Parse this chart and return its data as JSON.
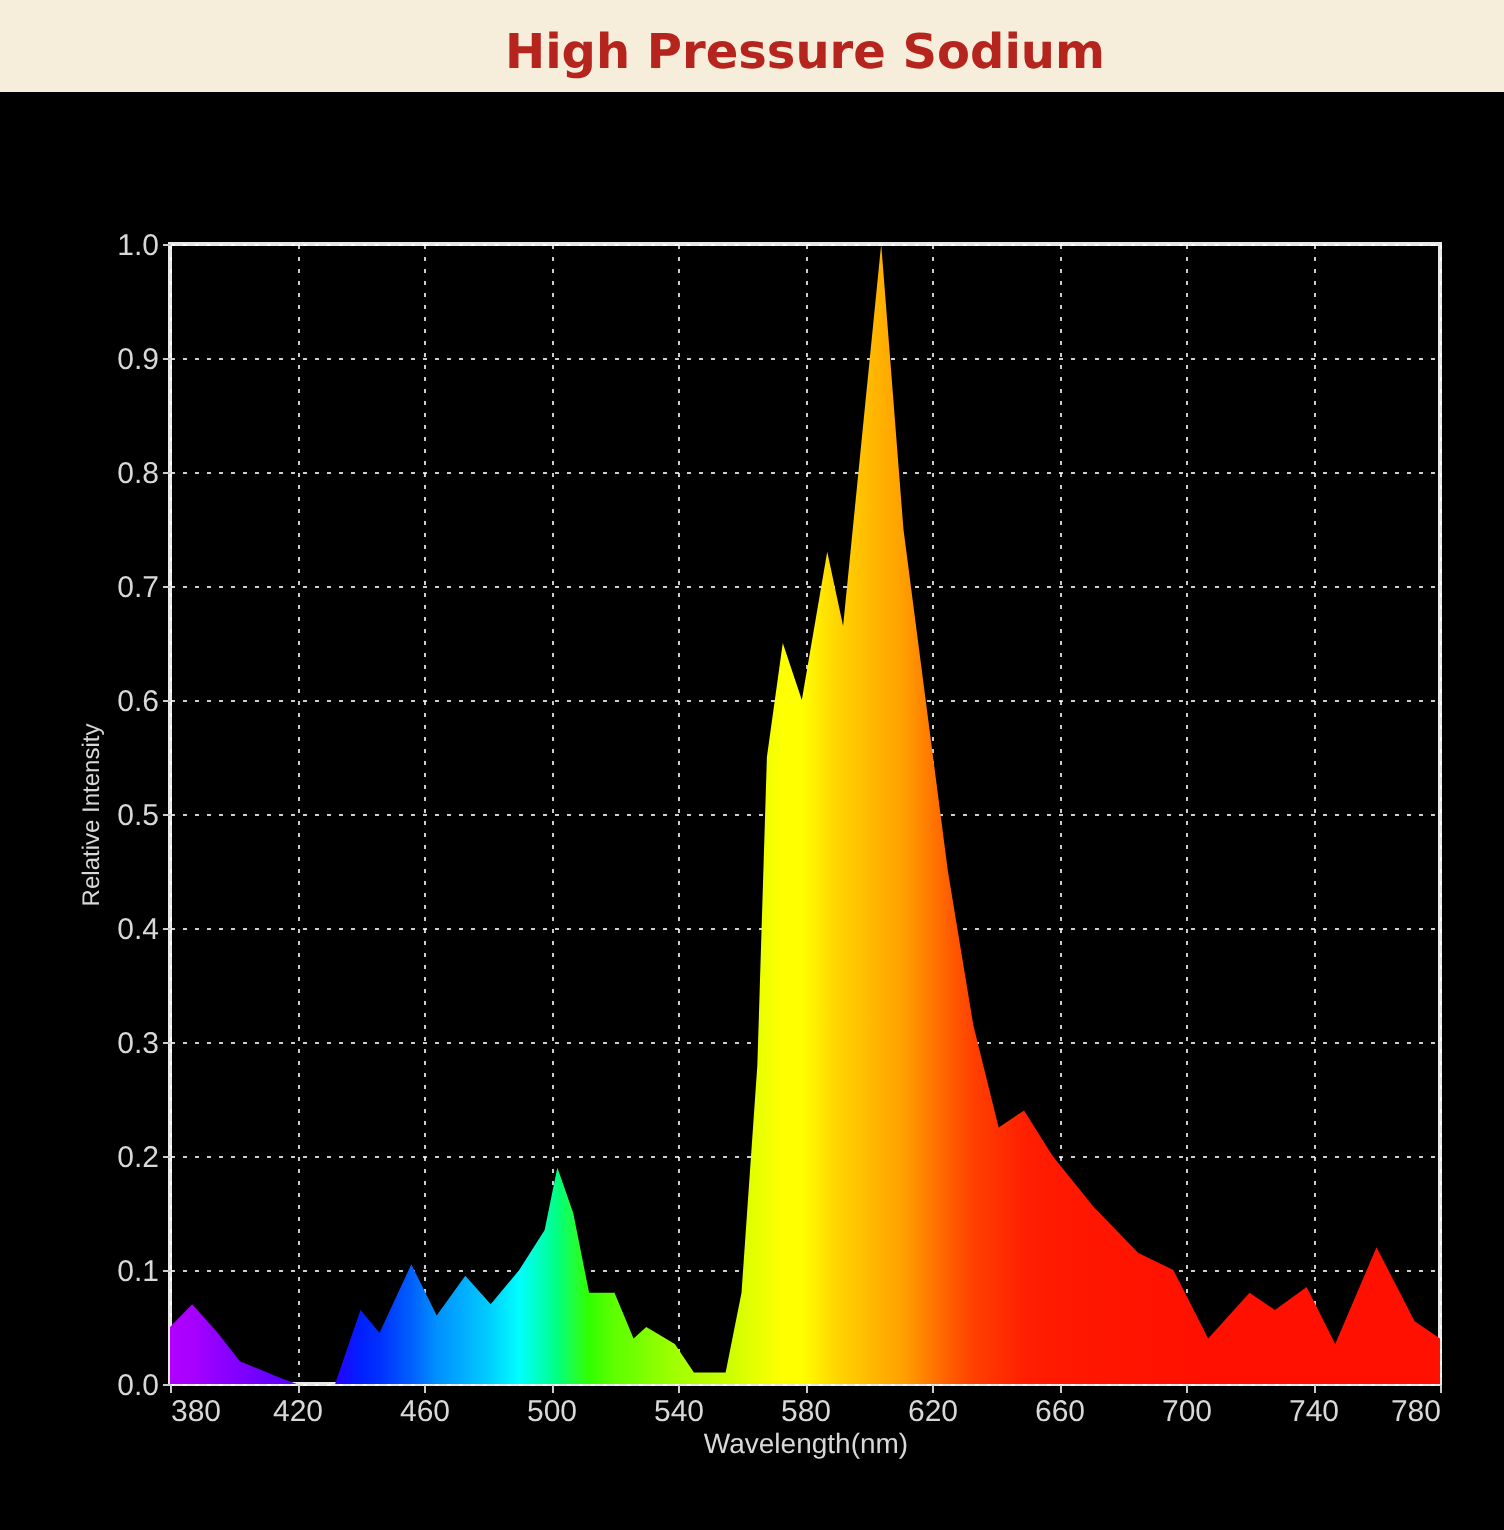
{
  "chart_data": {
    "type": "area",
    "title": "High Pressure Sodium",
    "xlabel": "Wavelength(nm)",
    "ylabel": "Relative Intensity",
    "x": [
      380,
      387,
      395,
      402,
      415,
      420,
      430,
      432,
      440,
      446,
      456,
      464,
      473,
      481,
      490,
      498,
      502,
      507,
      512,
      520,
      526,
      530,
      539,
      545,
      555,
      560,
      565,
      568,
      573,
      579,
      587,
      592,
      604,
      611,
      618,
      625,
      633,
      641,
      649,
      658,
      671,
      685,
      696,
      707,
      720,
      728,
      738,
      747,
      760,
      772,
      780
    ],
    "series": [
      {
        "values": [
          0.05,
          0.07,
          0.045,
          0.02,
          0.005,
          0.0,
          0.0,
          0.0,
          0.065,
          0.045,
          0.105,
          0.06,
          0.095,
          0.07,
          0.1,
          0.135,
          0.19,
          0.15,
          0.08,
          0.08,
          0.04,
          0.05,
          0.035,
          0.01,
          0.01,
          0.08,
          0.28,
          0.55,
          0.65,
          0.6,
          0.73,
          0.665,
          1.0,
          0.75,
          0.6,
          0.45,
          0.315,
          0.225,
          0.24,
          0.2,
          0.155,
          0.115,
          0.1,
          0.04,
          0.08,
          0.065,
          0.085,
          0.035,
          0.12,
          0.055,
          0.04
        ],
        "colors": [
          "#b000ff",
          "#a800ff",
          "#9000ff",
          "#8000ff",
          "#6000ff",
          "#5a00ff",
          "#3000ff",
          "#2800ff",
          "#0020ff",
          "#0030ff",
          "#0060ff",
          "#0090ff",
          "#00b0ff",
          "#00d0ff",
          "#00ffff",
          "#00ffb0",
          "#00ff80",
          "#20ff40",
          "#30ff00",
          "#60ff00",
          "#70ff00",
          "#80ff00",
          "#a0ff00",
          "#b0ff00",
          "#c8ff00",
          "#d8ff00",
          "#e8ff00",
          "#f0ff00",
          "#ffff00",
          "#ffff00",
          "#ffe000",
          "#ffd000",
          "#ffb000",
          "#ffa000",
          "#ff8000",
          "#ff6000",
          "#ff4000",
          "#ff3000",
          "#ff2000",
          "#ff1a00",
          "#ff1600",
          "#ff1400",
          "#ff1200",
          "#ff1000",
          "#ff1000",
          "#ff1000",
          "#ff1000",
          "#ff1000",
          "#ff1000",
          "#ff1000",
          "#ff1000"
        ]
      }
    ],
    "xlim": [
      380,
      780
    ],
    "xticks": [
      380,
      420,
      460,
      500,
      540,
      580,
      620,
      660,
      700,
      740,
      780
    ],
    "ylim": [
      0,
      1.0
    ],
    "yticks": [
      {
        "value": 0,
        "label": "0.0"
      },
      0.1,
      0.2,
      0.3,
      0.4,
      0.5,
      0.6,
      0.7,
      0.8,
      0.9,
      {
        "value": 1.0,
        "label": "1.0"
      }
    ],
    "grid": true
  }
}
